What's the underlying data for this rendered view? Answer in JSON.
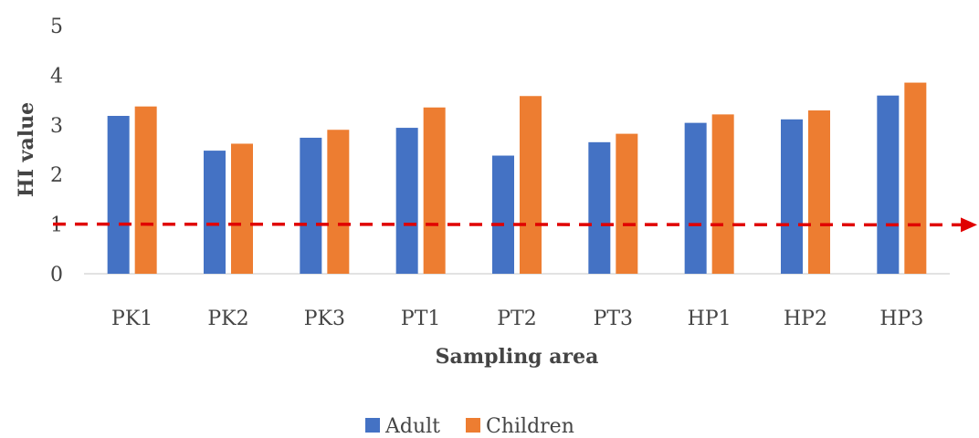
{
  "chart_data": {
    "type": "bar",
    "categories": [
      "PK1",
      "PK2",
      "PK3",
      "PT1",
      "PT2",
      "PT3",
      "HP1",
      "HP2",
      "HP3"
    ],
    "series": [
      {
        "name": "Adult",
        "color": "#4472C4",
        "values": [
          3.18,
          2.48,
          2.74,
          2.94,
          2.38,
          2.65,
          3.04,
          3.11,
          3.59
        ]
      },
      {
        "name": "Children",
        "color": "#ED7D31",
        "values": [
          3.37,
          2.62,
          2.9,
          3.35,
          3.58,
          2.82,
          3.21,
          3.29,
          3.85
        ]
      }
    ],
    "xlabel": "Sampling area",
    "ylabel": "HI value",
    "ylim": [
      0,
      5
    ],
    "yticks": [
      "0",
      "1",
      "2",
      "3",
      "4",
      "5"
    ],
    "grid": false,
    "legend": "bottom",
    "threshold": {
      "value": 1,
      "color": "#E00000",
      "style": "dashed-arrow"
    }
  }
}
